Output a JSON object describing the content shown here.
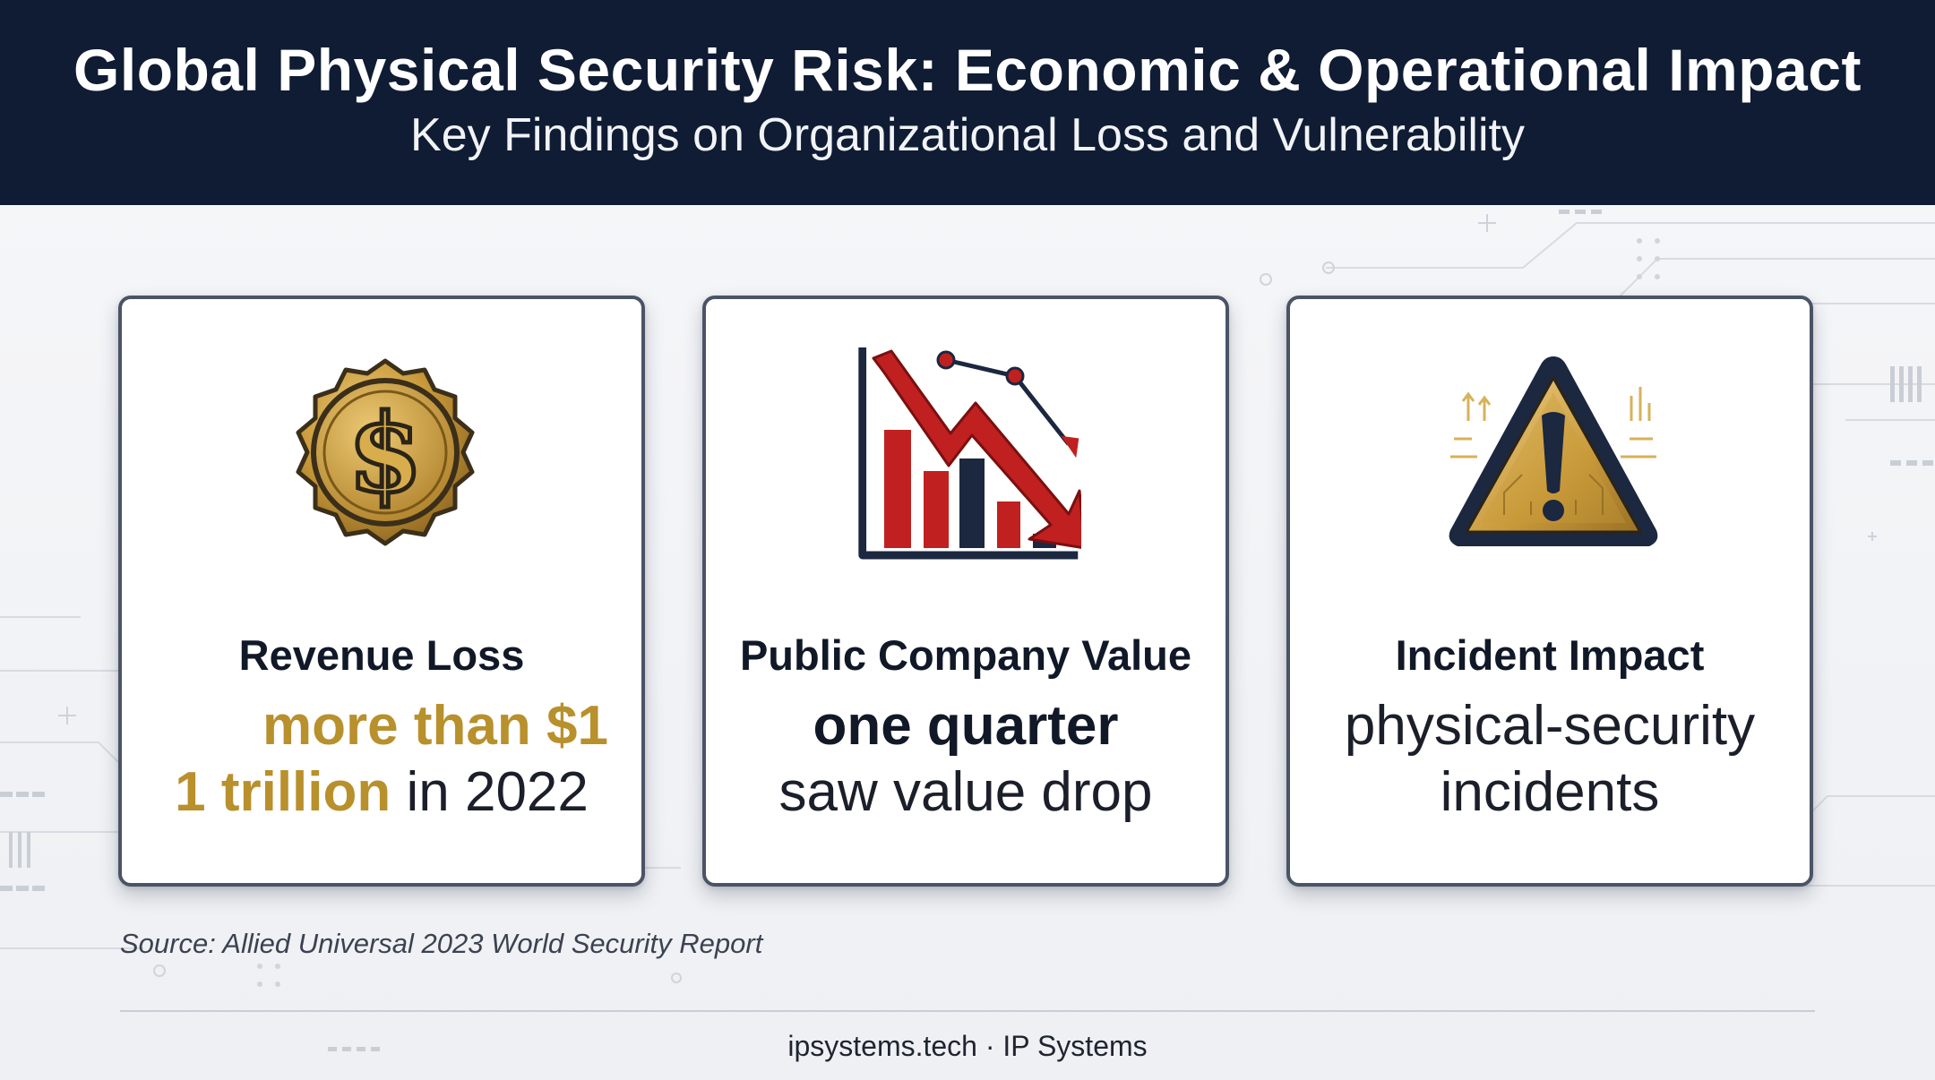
{
  "header": {
    "title": "Global Physical Security Risk: Economic & Operational Impact",
    "subtitle": "Key Findings on Organizational Loss and Vulnerability"
  },
  "cards": [
    {
      "icon": "dollar-coin-icon",
      "title": "Revenue Loss",
      "stat_line1_highlight": "more than $1",
      "stat_line2_highlight": "1 trillion",
      "stat_line2_rest": " in 2022"
    },
    {
      "icon": "declining-bar-chart-icon",
      "title": "Public Company Value",
      "stat_line1_highlight": "one quarter",
      "stat_line2_rest": "saw value drop"
    },
    {
      "icon": "warning-triangle-icon",
      "title": "Incident Impact",
      "stat_line1_rest": "physical-security",
      "stat_line2_rest": "incidents"
    }
  ],
  "source": "Source: Allied Universal 2023 World Security Report",
  "footer": "ipsystems.tech · IP Systems",
  "colors": {
    "header_bg": "#0f1c33",
    "gold": "#b8902c",
    "red": "#c0201f",
    "navy": "#1c2740",
    "card_border": "#4b5466"
  }
}
